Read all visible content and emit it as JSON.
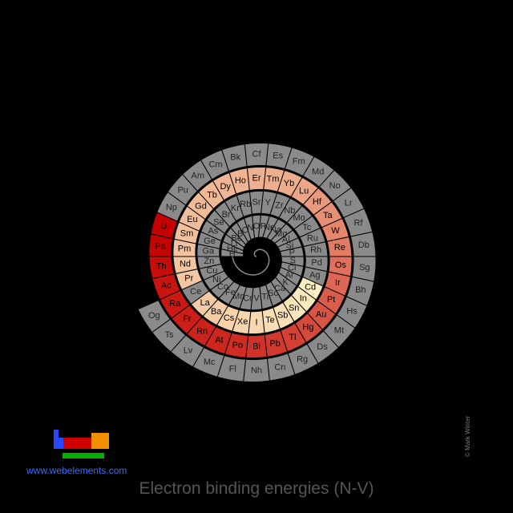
{
  "title": "Electron binding energies (N-V)",
  "site_link": "www.webelements.com",
  "copyright": "© Mark Winter",
  "colors": {
    "background": "#000000",
    "no_data": "#8a8a8a",
    "no_data_stroke": "#000000",
    "scale_low": "#fff6c8",
    "scale_high": "#c40000",
    "spiral_line": "#8a8a8a",
    "logo_blue": "#2848ff",
    "logo_red": "#d00000",
    "logo_orange": "#f09000",
    "logo_green": "#00b000"
  },
  "elements": [
    {
      "sym": "H",
      "v": null
    },
    {
      "sym": "He",
      "v": null
    },
    {
      "sym": "Li",
      "v": null
    },
    {
      "sym": "Be",
      "v": null
    },
    {
      "sym": "B",
      "v": null
    },
    {
      "sym": "C",
      "v": null
    },
    {
      "sym": "N",
      "v": null
    },
    {
      "sym": "O",
      "v": null
    },
    {
      "sym": "F",
      "v": null
    },
    {
      "sym": "Ne",
      "v": null
    },
    {
      "sym": "Na",
      "v": null
    },
    {
      "sym": "Mg",
      "v": null
    },
    {
      "sym": "Al",
      "v": null
    },
    {
      "sym": "Si",
      "v": null
    },
    {
      "sym": "P",
      "v": null
    },
    {
      "sym": "S",
      "v": null
    },
    {
      "sym": "Cl",
      "v": null
    },
    {
      "sym": "Ar",
      "v": null
    },
    {
      "sym": "K",
      "v": null
    },
    {
      "sym": "Ca",
      "v": null
    },
    {
      "sym": "Sc",
      "v": null
    },
    {
      "sym": "Ti",
      "v": null
    },
    {
      "sym": "V",
      "v": null
    },
    {
      "sym": "Cr",
      "v": null
    },
    {
      "sym": "Mn",
      "v": null
    },
    {
      "sym": "Fe",
      "v": null
    },
    {
      "sym": "Co",
      "v": null
    },
    {
      "sym": "Ni",
      "v": null
    },
    {
      "sym": "Cu",
      "v": null
    },
    {
      "sym": "Zn",
      "v": null
    },
    {
      "sym": "Ga",
      "v": null
    },
    {
      "sym": "Ge",
      "v": null
    },
    {
      "sym": "As",
      "v": null
    },
    {
      "sym": "Se",
      "v": null
    },
    {
      "sym": "Br",
      "v": null
    },
    {
      "sym": "Kr",
      "v": null
    },
    {
      "sym": "Rb",
      "v": null
    },
    {
      "sym": "Sr",
      "v": null
    },
    {
      "sym": "Y",
      "v": null
    },
    {
      "sym": "Zr",
      "v": null
    },
    {
      "sym": "Nb",
      "v": null
    },
    {
      "sym": "Mo",
      "v": null
    },
    {
      "sym": "Tc",
      "v": null
    },
    {
      "sym": "Ru",
      "v": null
    },
    {
      "sym": "Rh",
      "v": null
    },
    {
      "sym": "Pd",
      "v": null
    },
    {
      "sym": "Ag",
      "v": null
    },
    {
      "sym": "Cd",
      "v": 0.03
    },
    {
      "sym": "In",
      "v": 0.05
    },
    {
      "sym": "Sn",
      "v": 0.07
    },
    {
      "sym": "Sb",
      "v": 0.09
    },
    {
      "sym": "Te",
      "v": 0.1
    },
    {
      "sym": "I",
      "v": 0.12
    },
    {
      "sym": "Xe",
      "v": 0.13
    },
    {
      "sym": "Cs",
      "v": 0.15
    },
    {
      "sym": "Ba",
      "v": 0.17
    },
    {
      "sym": "La",
      "v": 0.18
    },
    {
      "sym": "Ce",
      "v": null
    },
    {
      "sym": "Pr",
      "v": 0.19
    },
    {
      "sym": "Nd",
      "v": 0.2
    },
    {
      "sym": "Pm",
      "v": 0.21
    },
    {
      "sym": "Sm",
      "v": 0.22
    },
    {
      "sym": "Eu",
      "v": 0.23
    },
    {
      "sym": "Gd",
      "v": 0.24
    },
    {
      "sym": "Tb",
      "v": 0.25
    },
    {
      "sym": "Dy",
      "v": 0.26
    },
    {
      "sym": "Ho",
      "v": 0.27
    },
    {
      "sym": "Er",
      "v": 0.28
    },
    {
      "sym": "Tm",
      "v": 0.29
    },
    {
      "sym": "Yb",
      "v": 0.3
    },
    {
      "sym": "Lu",
      "v": 0.33
    },
    {
      "sym": "Hf",
      "v": 0.38
    },
    {
      "sym": "Ta",
      "v": 0.42
    },
    {
      "sym": "W",
      "v": 0.46
    },
    {
      "sym": "Re",
      "v": 0.5
    },
    {
      "sym": "Os",
      "v": 0.54
    },
    {
      "sym": "Ir",
      "v": 0.58
    },
    {
      "sym": "Pt",
      "v": 0.62
    },
    {
      "sym": "Au",
      "v": 0.66
    },
    {
      "sym": "Hg",
      "v": 0.7
    },
    {
      "sym": "Tl",
      "v": 0.74
    },
    {
      "sym": "Pb",
      "v": 0.77
    },
    {
      "sym": "Bi",
      "v": 0.8
    },
    {
      "sym": "Po",
      "v": 0.82
    },
    {
      "sym": "At",
      "v": 0.84
    },
    {
      "sym": "Rn",
      "v": 0.86
    },
    {
      "sym": "Fr",
      "v": 0.88
    },
    {
      "sym": "Ra",
      "v": 0.9
    },
    {
      "sym": "Ac",
      "v": 0.92
    },
    {
      "sym": "Th",
      "v": 0.95
    },
    {
      "sym": "Pa",
      "v": 0.98
    },
    {
      "sym": "U",
      "v": 1.0
    },
    {
      "sym": "Np",
      "v": null
    },
    {
      "sym": "Pu",
      "v": null
    },
    {
      "sym": "Am",
      "v": null
    },
    {
      "sym": "Cm",
      "v": null
    },
    {
      "sym": "Bk",
      "v": null
    },
    {
      "sym": "Cf",
      "v": null
    },
    {
      "sym": "Es",
      "v": null
    },
    {
      "sym": "Fm",
      "v": null
    },
    {
      "sym": "Md",
      "v": null
    },
    {
      "sym": "No",
      "v": null
    },
    {
      "sym": "Lr",
      "v": null
    },
    {
      "sym": "Rf",
      "v": null
    },
    {
      "sym": "Db",
      "v": null
    },
    {
      "sym": "Sg",
      "v": null
    },
    {
      "sym": "Bh",
      "v": null
    },
    {
      "sym": "Hs",
      "v": null
    },
    {
      "sym": "Mt",
      "v": null
    },
    {
      "sym": "Ds",
      "v": null
    },
    {
      "sym": "Rg",
      "v": null
    },
    {
      "sym": "Cn",
      "v": null
    },
    {
      "sym": "Nh",
      "v": null
    },
    {
      "sym": "Fl",
      "v": null
    },
    {
      "sym": "Mc",
      "v": null
    },
    {
      "sym": "Lv",
      "v": null
    },
    {
      "sym": "Ts",
      "v": null
    },
    {
      "sym": "Og",
      "v": null
    }
  ]
}
